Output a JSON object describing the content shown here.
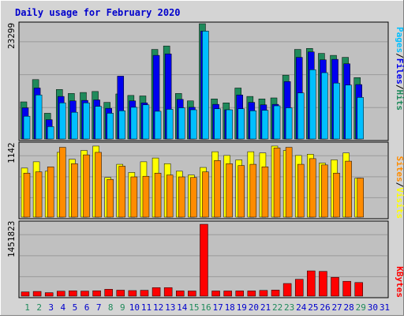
{
  "title": "Daily usage for February 2020",
  "colors": {
    "hits": "#1f8a5b",
    "files": "#0000ee",
    "pages": "#00bfff",
    "visits": "#ffff00",
    "sites": "#ff8c00",
    "kbytes": "#ff0000",
    "plot_bg": "#c0c0c0",
    "frame_bg": "#d4d4d4",
    "title_color": "#0000cc",
    "weekend_label": "#1f8a5b",
    "day_label": "#0000cc"
  },
  "chart_data": [
    {
      "type": "bar",
      "panel": "hits-files-pages",
      "max_label": "23299",
      "legend": [
        "Pages",
        "/",
        "Files",
        "/",
        "Hits"
      ],
      "categories": [
        "1",
        "2",
        "3",
        "4",
        "5",
        "6",
        "7",
        "8",
        "9",
        "10",
        "11",
        "12",
        "13",
        "14",
        "15",
        "16",
        "17",
        "18",
        "19",
        "20",
        "21",
        "22",
        "23",
        "24",
        "25",
        "26",
        "27",
        "28",
        "29",
        "30",
        "31"
      ],
      "ylim": [
        0,
        23299
      ],
      "series": [
        {
          "name": "Hits",
          "values": [
            7500,
            12000,
            5200,
            10000,
            9200,
            9400,
            9600,
            7400,
            9100,
            8800,
            8700,
            18100,
            18800,
            9200,
            7700,
            23299,
            8100,
            7300,
            10300,
            8600,
            8100,
            8300,
            12900,
            18100,
            18300,
            17300,
            16900,
            16500,
            12400,
            0,
            0
          ]
        },
        {
          "name": "Files",
          "values": [
            6300,
            10300,
            3900,
            8600,
            7700,
            7800,
            7900,
            6200,
            12700,
            7700,
            7300,
            16900,
            17200,
            8000,
            6400,
            21800,
            7000,
            5900,
            8900,
            7400,
            6900,
            7000,
            11600,
            16500,
            17600,
            16000,
            16100,
            15200,
            11000,
            0,
            0
          ]
        },
        {
          "name": "Pages",
          "values": [
            4600,
            8900,
            2500,
            7300,
            5400,
            7300,
            6600,
            5200,
            5700,
            6400,
            6900,
            5600,
            6000,
            6300,
            5900,
            21800,
            6100,
            5900,
            6100,
            5700,
            5800,
            6700,
            6300,
            9300,
            14000,
            13400,
            11300,
            10900,
            8400,
            0,
            0
          ]
        }
      ]
    },
    {
      "type": "bar",
      "panel": "visits-sites",
      "max_label": "1142",
      "legend": [
        "Sites",
        "/",
        "Visits"
      ],
      "categories": [
        "1",
        "2",
        "3",
        "4",
        "5",
        "6",
        "7",
        "8",
        "9",
        "10",
        "11",
        "12",
        "13",
        "14",
        "15",
        "16",
        "17",
        "18",
        "19",
        "20",
        "21",
        "22",
        "23",
        "24",
        "25",
        "26",
        "27",
        "28",
        "29",
        "30",
        "31"
      ],
      "ylim": [
        0,
        1142
      ],
      "series": [
        {
          "name": "Visits",
          "values": [
            780,
            880,
            730,
            1030,
            920,
            1060,
            1130,
            630,
            840,
            710,
            880,
            940,
            850,
            730,
            670,
            790,
            1040,
            980,
            910,
            1040,
            1020,
            1130,
            1060,
            980,
            1000,
            860,
            910,
            1020,
            620,
            0,
            0
          ]
        },
        {
          "name": "Sites",
          "values": [
            700,
            720,
            800,
            1110,
            850,
            990,
            1030,
            600,
            810,
            640,
            650,
            700,
            670,
            640,
            630,
            720,
            900,
            850,
            820,
            840,
            800,
            1100,
            1110,
            840,
            930,
            830,
            700,
            890,
            620,
            0,
            0
          ]
        }
      ]
    },
    {
      "type": "bar",
      "panel": "kbytes",
      "max_label": "1451823",
      "legend": [
        "KBytes"
      ],
      "categories": [
        "1",
        "2",
        "3",
        "4",
        "5",
        "6",
        "7",
        "8",
        "9",
        "10",
        "11",
        "12",
        "13",
        "14",
        "15",
        "16",
        "17",
        "18",
        "19",
        "20",
        "21",
        "22",
        "23",
        "24",
        "25",
        "26",
        "27",
        "28",
        "29",
        "30",
        "31"
      ],
      "ylim": [
        0,
        1451823
      ],
      "series": [
        {
          "name": "KBytes",
          "values": [
            85000,
            95000,
            70000,
            100000,
            108000,
            102000,
            108000,
            138000,
            120000,
            112000,
            118000,
            172000,
            172000,
            106000,
            104000,
            1451823,
            104000,
            104000,
            105000,
            105000,
            115000,
            122000,
            255000,
            340000,
            510000,
            500000,
            380000,
            300000,
            275000,
            0,
            0
          ]
        }
      ]
    }
  ],
  "day_labels": [
    {
      "text": "1",
      "weekend": true
    },
    {
      "text": "2",
      "weekend": true
    },
    {
      "text": "3",
      "weekend": false
    },
    {
      "text": "4",
      "weekend": false
    },
    {
      "text": "5",
      "weekend": false
    },
    {
      "text": "6",
      "weekend": false
    },
    {
      "text": "7",
      "weekend": false
    },
    {
      "text": "8",
      "weekend": true
    },
    {
      "text": "9",
      "weekend": true
    },
    {
      "text": "10",
      "weekend": false
    },
    {
      "text": "11",
      "weekend": false
    },
    {
      "text": "12",
      "weekend": false
    },
    {
      "text": "13",
      "weekend": false
    },
    {
      "text": "14",
      "weekend": false
    },
    {
      "text": "15",
      "weekend": true
    },
    {
      "text": "16",
      "weekend": true
    },
    {
      "text": "17",
      "weekend": false
    },
    {
      "text": "18",
      "weekend": false
    },
    {
      "text": "19",
      "weekend": false
    },
    {
      "text": "20",
      "weekend": false
    },
    {
      "text": "21",
      "weekend": false
    },
    {
      "text": "22",
      "weekend": true
    },
    {
      "text": "23",
      "weekend": true
    },
    {
      "text": "24",
      "weekend": false
    },
    {
      "text": "25",
      "weekend": false
    },
    {
      "text": "26",
      "weekend": false
    },
    {
      "text": "27",
      "weekend": false
    },
    {
      "text": "28",
      "weekend": false
    },
    {
      "text": "29",
      "weekend": true
    },
    {
      "text": "30",
      "weekend": false
    },
    {
      "text": "31",
      "weekend": false
    }
  ]
}
